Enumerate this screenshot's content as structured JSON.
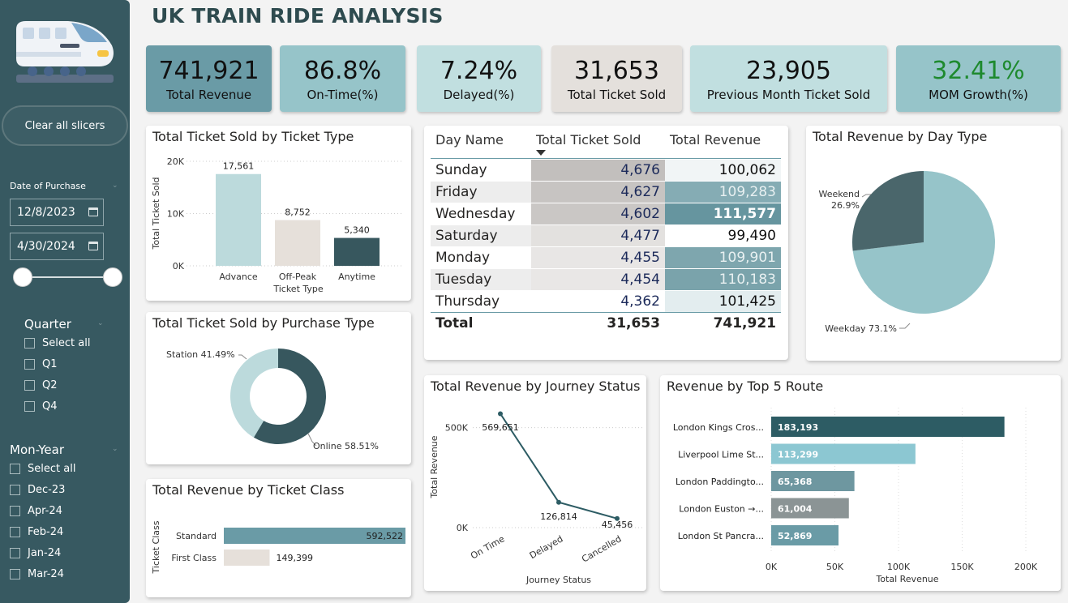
{
  "header": {
    "title": "UK TRAIN RIDE ANALYSIS"
  },
  "sidebar": {
    "clear_label": "Clear all slicers",
    "date_label": "Date of Purchase",
    "date_start": "12/8/2023",
    "date_end": "4/30/2024",
    "quarter": {
      "title": "Quarter",
      "items": [
        "Select all",
        "Q1",
        "Q2",
        "Q4"
      ]
    },
    "monyear": {
      "title": "Mon-Year",
      "items": [
        "Select all",
        "Dec-23",
        "Apr-24",
        "Feb-24",
        "Jan-24",
        "Mar-24"
      ]
    }
  },
  "kpis": [
    {
      "value": "741,921",
      "label": "Total Revenue",
      "bg": "#6a9ba6"
    },
    {
      "value": "86.8%",
      "label": "On-Time(%)",
      "bg": "#96c4c9"
    },
    {
      "value": "7.24%",
      "label": "Delayed(%)",
      "bg": "#c1dfe0"
    },
    {
      "value": "31,653",
      "label": "Total Ticket Sold",
      "bg": "#e4e0dc"
    },
    {
      "value": "23,905",
      "label": "Previous Month Ticket Sold",
      "bg": "#c1dfe0"
    },
    {
      "value": "32.41%",
      "label": "MOM Growth(%)",
      "bg": "#96c4c9",
      "color": "#1e8a2e"
    }
  ],
  "table": {
    "headers": [
      "Day Name",
      "Total Ticket Sold",
      "Total Revenue"
    ],
    "rows": [
      {
        "day": "Sunday",
        "sold": "4,676",
        "rev": "100,062",
        "soldBg": "#c2bfbd",
        "revBg": "#f1f5f6",
        "revColor": "#111",
        "revBold": false
      },
      {
        "day": "Friday",
        "sold": "4,627",
        "rev": "109,283",
        "soldBg": "#c7c4c2",
        "revBg": "#85acb4",
        "revColor": "#e8f0f1",
        "revBold": false
      },
      {
        "day": "Wednesday",
        "sold": "4,602",
        "rev": "111,577",
        "soldBg": "#cac7c5",
        "revBg": "#66959f",
        "revColor": "#fff",
        "revBold": true
      },
      {
        "day": "Saturday",
        "sold": "4,477",
        "rev": "99,490",
        "soldBg": "#e3e1df",
        "revBg": "#ffffff",
        "revColor": "#111",
        "revBold": false
      },
      {
        "day": "Monday",
        "sold": "4,455",
        "rev": "109,901",
        "soldBg": "#e8e6e5",
        "revBg": "#7ea6ae",
        "revColor": "#e8f0f1",
        "revBold": false
      },
      {
        "day": "Tuesday",
        "sold": "4,454",
        "rev": "110,183",
        "soldBg": "#e9e7e6",
        "revBg": "#7aa3ab",
        "revColor": "#e8f0f1",
        "revBold": false
      },
      {
        "day": "Thursday",
        "sold": "4,362",
        "rev": "101,425",
        "soldBg": "#ffffff",
        "revBg": "#e3edef",
        "revColor": "#111",
        "revBold": false
      }
    ],
    "total": {
      "label": "Total",
      "sold": "31,653",
      "rev": "741,921"
    }
  },
  "chart_data": [
    {
      "id": "ticket_type",
      "type": "bar",
      "title": "Total Ticket Sold by Ticket Type",
      "xlabel": "Ticket Type",
      "ylabel": "Total Ticket Sold",
      "categories": [
        "Advance",
        "Off-Peak",
        "Anytime"
      ],
      "values": [
        17561,
        8752,
        5340
      ],
      "labels": [
        "17,561",
        "8,752",
        "5,340"
      ],
      "ylim": [
        0,
        20000
      ],
      "yticks": [
        "0K",
        "10K",
        "20K"
      ],
      "colors": [
        "#bcdadc",
        "#e6e0da",
        "#37575e"
      ]
    },
    {
      "id": "purchase_type",
      "type": "pie",
      "title": "Total Ticket Sold by Purchase Type",
      "slices": [
        {
          "label": "Online 58.51%",
          "value": 58.51,
          "color": "#37575e"
        },
        {
          "label": "Station 41.49%",
          "value": 41.49,
          "color": "#bcdadc"
        }
      ]
    },
    {
      "id": "ticket_class",
      "type": "bar",
      "title": "Total Revenue by Ticket Class",
      "ylabel": "Ticket Class",
      "categories": [
        "Standard",
        "First Class"
      ],
      "values": [
        592522,
        149399
      ],
      "labels": [
        "592,522",
        "149,399"
      ],
      "colors": [
        "#6a9ba6",
        "#e6e0da"
      ]
    },
    {
      "id": "journey_status",
      "type": "line",
      "title": "Total Revenue by Journey Status",
      "xlabel": "Journey Status",
      "ylabel": "Total Revenue",
      "categories": [
        "On Time",
        "Delayed",
        "Cancelled"
      ],
      "values": [
        569651,
        126814,
        45456
      ],
      "labels": [
        "569,651",
        "126,814",
        "45,456"
      ],
      "ylim": [
        0,
        600000
      ],
      "yticks": [
        "0K",
        "500K"
      ],
      "color": "#2d5c64"
    },
    {
      "id": "day_type",
      "type": "pie",
      "title": "Total Revenue by Day Type",
      "slices": [
        {
          "label": "Weekday 73.1%",
          "value": 73.1,
          "color": "#96c4c9"
        },
        {
          "label": "Weekend",
          "sub": "26.9%",
          "value": 26.9,
          "color": "#4a666b"
        }
      ]
    },
    {
      "id": "top_routes",
      "type": "bar",
      "title": "Revenue by Top 5 Route",
      "xlabel": "Total Revenue",
      "categories": [
        "London Kings Cros...",
        "Liverpool Lime St...",
        "London Paddingto...",
        "London Euston →...",
        "London St Pancra..."
      ],
      "values": [
        183193,
        113299,
        65368,
        61004,
        52869
      ],
      "labels": [
        "183,193",
        "113,299",
        "65,368",
        "61,004",
        "52,869"
      ],
      "xlim": [
        0,
        200000
      ],
      "xticks": [
        "0K",
        "50K",
        "100K",
        "150K",
        "200K"
      ],
      "colors": [
        "#2d5c64",
        "#8cc7d2",
        "#6e97a0",
        "#8b9495",
        "#6a9ba6"
      ]
    }
  ]
}
